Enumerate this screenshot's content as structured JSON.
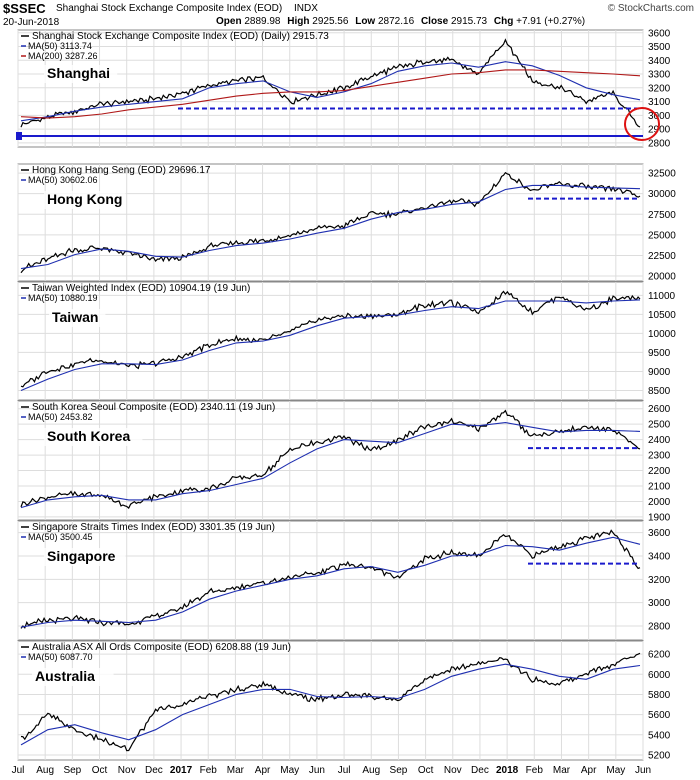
{
  "header": {
    "symbol": "$SSEC",
    "name": "Shanghai Stock Exchange Composite Index (EOD)",
    "exchange": "INDX",
    "date": "20-Jun-2018",
    "open_label": "Open",
    "open": "2889.98",
    "high_label": "High",
    "high": "2925.56",
    "low_label": "Low",
    "low": "2872.16",
    "close_label": "Close",
    "close": "2915.73",
    "chg_label": "Chg",
    "chg": "+7.91 (+0.27%)",
    "source": "© StockCharts.com"
  },
  "colors": {
    "price": "#000000",
    "ma50": "#1f2fb0",
    "ma200": "#b01818",
    "support": "#1a1acc",
    "circle": "#dd1111",
    "grid": "#dddddd"
  },
  "x_axis": {
    "labels": [
      "Jul",
      "Aug",
      "Sep",
      "Oct",
      "Nov",
      "Dec",
      "2017",
      "Feb",
      "Mar",
      "Apr",
      "May",
      "Jun",
      "Jul",
      "Aug",
      "Sep",
      "Oct",
      "Nov",
      "Dec",
      "2018",
      "Feb",
      "Mar",
      "Apr",
      "May",
      "Jun"
    ],
    "bold_labels": [
      "2017",
      "2018"
    ]
  },
  "chart_data": [
    {
      "type": "line",
      "name": "Shanghai",
      "legend": "Shanghai Stock Exchange Composite Index (EOD) (Daily) 2915.73",
      "legend_ma50": "MA(50) 3113.74",
      "legend_ma200": "MA(200) 3287.26",
      "x": [
        "Jul-16",
        "Aug-16",
        "Sep-16",
        "Oct-16",
        "Nov-16",
        "Dec-16",
        "Jan-17",
        "Feb-17",
        "Mar-17",
        "Apr-17",
        "May-17",
        "Jun-17",
        "Jul-17",
        "Aug-17",
        "Sep-17",
        "Oct-17",
        "Nov-17",
        "Dec-17",
        "Jan-18",
        "Feb-18",
        "Mar-18",
        "Apr-18",
        "May-18",
        "Jun-18"
      ],
      "close": [
        2930,
        2985,
        3030,
        3080,
        3100,
        3120,
        3160,
        3220,
        3250,
        3270,
        3100,
        3150,
        3200,
        3280,
        3350,
        3390,
        3400,
        3300,
        3550,
        3250,
        3200,
        3100,
        3160,
        2915
      ],
      "ma50": [
        2960,
        2990,
        3030,
        3060,
        3080,
        3100,
        3120,
        3200,
        3230,
        3250,
        3170,
        3130,
        3170,
        3230,
        3320,
        3360,
        3380,
        3350,
        3390,
        3360,
        3290,
        3200,
        3150,
        3113
      ],
      "ma200": [
        2990,
        2980,
        2990,
        3010,
        3040,
        3060,
        3080,
        3110,
        3140,
        3160,
        3170,
        3170,
        3180,
        3210,
        3240,
        3270,
        3300,
        3310,
        3330,
        3330,
        3320,
        3310,
        3300,
        3287
      ],
      "support_levels": [
        3050,
        2850
      ],
      "ylim": [
        2770,
        3620
      ],
      "yticks": [
        2800,
        2900,
        3000,
        3100,
        3200,
        3300,
        3400,
        3500,
        3600
      ],
      "show_ma200": true,
      "circle": true
    },
    {
      "type": "line",
      "name": "Hong Kong",
      "legend": "Hong Kong Hang Seng (EOD) 29696.17",
      "legend_ma50": "MA(50) 30602.06",
      "x": [
        "Jul-16",
        "Aug-16",
        "Sep-16",
        "Oct-16",
        "Nov-16",
        "Dec-16",
        "Jan-17",
        "Feb-17",
        "Mar-17",
        "Apr-17",
        "May-17",
        "Jun-17",
        "Jul-17",
        "Aug-17",
        "Sep-17",
        "Oct-17",
        "Nov-17",
        "Dec-17",
        "Jan-18",
        "Feb-18",
        "Mar-18",
        "Apr-18",
        "May-18",
        "Jun-18"
      ],
      "close": [
        20800,
        22100,
        23200,
        23400,
        22800,
        21900,
        22200,
        23600,
        24100,
        24300,
        24900,
        25800,
        26100,
        27500,
        27600,
        28300,
        29100,
        28800,
        32500,
        30300,
        31200,
        30800,
        30500,
        29700
      ],
      "ma50": [
        20900,
        21400,
        22600,
        23300,
        23000,
        22400,
        22300,
        23100,
        23700,
        24000,
        24500,
        25200,
        25800,
        26900,
        27700,
        28100,
        28700,
        29000,
        30500,
        31000,
        31000,
        30800,
        30700,
        30602
      ],
      "support_levels": [
        29400
      ],
      "ylim": [
        19400,
        33600
      ],
      "yticks": [
        20000,
        22500,
        25000,
        27500,
        30000,
        32500
      ],
      "show_ma200": false,
      "circle": false
    },
    {
      "type": "line",
      "name": "Taiwan",
      "legend": "Taiwan Weighted Index (EOD) 10904.19 (19 Jun)",
      "legend_ma50": "MA(50) 10880.19",
      "x": [
        "Jul-16",
        "Aug-16",
        "Sep-16",
        "Oct-16",
        "Nov-16",
        "Dec-16",
        "Jan-17",
        "Feb-17",
        "Mar-17",
        "Apr-17",
        "May-17",
        "Jun-17",
        "Jul-17",
        "Aug-17",
        "Sep-17",
        "Oct-17",
        "Nov-17",
        "Dec-17",
        "Jan-18",
        "Feb-18",
        "Mar-18",
        "Apr-18",
        "May-18",
        "Jun-18"
      ],
      "close": [
        8600,
        9000,
        9200,
        9300,
        9150,
        9200,
        9400,
        9700,
        9850,
        9800,
        10050,
        10350,
        10450,
        10450,
        10500,
        10750,
        10800,
        10550,
        11100,
        10550,
        11000,
        10600,
        10900,
        10904
      ],
      "ma50": [
        8500,
        8800,
        9050,
        9200,
        9200,
        9180,
        9300,
        9550,
        9750,
        9800,
        9950,
        10200,
        10400,
        10450,
        10480,
        10600,
        10700,
        10650,
        10850,
        10850,
        10850,
        10800,
        10850,
        10880
      ],
      "support_levels": [],
      "ylim": [
        8250,
        11350
      ],
      "yticks": [
        8500,
        9000,
        9500,
        10000,
        10500,
        11000
      ],
      "show_ma200": false,
      "circle": false
    },
    {
      "type": "line",
      "name": "South Korea",
      "legend": "South Korea Seoul Composite (EOD) 2340.11 (19 Jun)",
      "legend_ma50": "MA(50) 2453.82",
      "x": [
        "Jul-16",
        "Aug-16",
        "Sep-16",
        "Oct-16",
        "Nov-16",
        "Dec-16",
        "Jan-17",
        "Feb-17",
        "Mar-17",
        "Apr-17",
        "May-17",
        "Jun-17",
        "Jul-17",
        "Aug-17",
        "Sep-17",
        "Oct-17",
        "Nov-17",
        "Dec-17",
        "Jan-18",
        "Feb-18",
        "Mar-18",
        "Apr-18",
        "May-18",
        "Jun-18"
      ],
      "close": [
        1980,
        2030,
        2050,
        2040,
        1970,
        2030,
        2070,
        2080,
        2150,
        2170,
        2340,
        2380,
        2420,
        2330,
        2390,
        2490,
        2520,
        2470,
        2580,
        2420,
        2450,
        2480,
        2460,
        2340
      ],
      "ma50": [
        1960,
        2010,
        2030,
        2040,
        2010,
        2010,
        2050,
        2070,
        2110,
        2150,
        2250,
        2340,
        2400,
        2390,
        2380,
        2440,
        2500,
        2490,
        2510,
        2480,
        2450,
        2460,
        2460,
        2453
      ],
      "support_levels": [
        2345
      ],
      "ylim": [
        1880,
        2650
      ],
      "yticks": [
        1900,
        2000,
        2100,
        2200,
        2300,
        2400,
        2500,
        2600
      ],
      "show_ma200": false,
      "circle": false
    },
    {
      "type": "line",
      "name": "Singapore",
      "legend": "Singapore Straits Times Index (EOD) 3301.35 (19 Jun)",
      "legend_ma50": "MA(50) 3500.45",
      "x": [
        "Jul-16",
        "Aug-16",
        "Sep-16",
        "Oct-16",
        "Nov-16",
        "Dec-16",
        "Jan-17",
        "Feb-17",
        "Mar-17",
        "Apr-17",
        "May-17",
        "Jun-17",
        "Jul-17",
        "Aug-17",
        "Sep-17",
        "Oct-17",
        "Nov-17",
        "Dec-17",
        "Jan-18",
        "Feb-18",
        "Mar-18",
        "Apr-18",
        "May-18",
        "Jun-18"
      ],
      "close": [
        2800,
        2850,
        2860,
        2830,
        2820,
        2880,
        2960,
        3090,
        3130,
        3170,
        3220,
        3250,
        3330,
        3300,
        3220,
        3370,
        3430,
        3400,
        3580,
        3400,
        3480,
        3550,
        3600,
        3300
      ],
      "ma50": [
        2790,
        2830,
        2850,
        2840,
        2830,
        2850,
        2920,
        3030,
        3100,
        3150,
        3200,
        3230,
        3290,
        3310,
        3260,
        3320,
        3400,
        3410,
        3490,
        3480,
        3450,
        3510,
        3560,
        3500
      ],
      "support_levels": [
        3335
      ],
      "ylim": [
        2680,
        3700
      ],
      "yticks": [
        2800,
        3000,
        3200,
        3400,
        3600
      ],
      "show_ma200": false,
      "circle": false
    },
    {
      "type": "line",
      "name": "Australia",
      "legend": "Australia ASX All Ords Composite (EOD) 6208.88 (19 Jun)",
      "legend_ma50": "MA(50) 6087.70",
      "x": [
        "Jul-16",
        "Aug-16",
        "Sep-16",
        "Oct-16",
        "Nov-16",
        "Dec-16",
        "Jan-17",
        "Feb-17",
        "Mar-17",
        "Apr-17",
        "May-17",
        "Jun-17",
        "Jul-17",
        "Aug-17",
        "Sep-17",
        "Oct-17",
        "Nov-17",
        "Dec-17",
        "Jan-18",
        "Feb-18",
        "Mar-18",
        "Apr-18",
        "May-18",
        "Jun-18"
      ],
      "close": [
        5350,
        5600,
        5450,
        5350,
        5250,
        5650,
        5700,
        5780,
        5850,
        5900,
        5800,
        5750,
        5800,
        5780,
        5750,
        5950,
        6050,
        6100,
        6150,
        5950,
        5900,
        6000,
        6100,
        6208
      ],
      "ma50": [
        5300,
        5450,
        5500,
        5420,
        5350,
        5450,
        5600,
        5700,
        5800,
        5850,
        5850,
        5780,
        5770,
        5780,
        5760,
        5850,
        5980,
        6050,
        6100,
        6050,
        5980,
        5950,
        6050,
        6087
      ],
      "support_levels": [],
      "ylim": [
        5150,
        6330
      ],
      "yticks": [
        5200,
        5400,
        5600,
        5800,
        6000,
        6200
      ],
      "show_ma200": false,
      "circle": false
    }
  ]
}
